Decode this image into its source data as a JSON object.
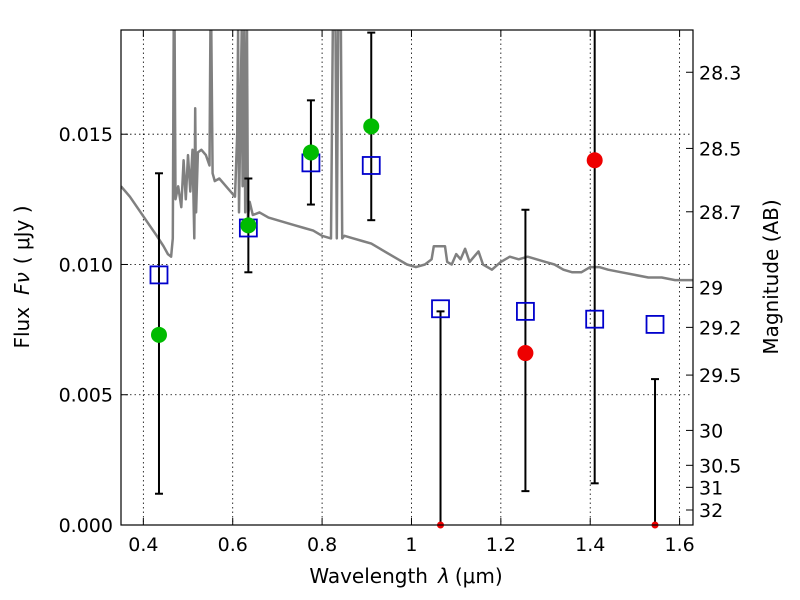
{
  "chart_data": {
    "type": "scatter",
    "xlabel_text": "Wavelength",
    "xlabel_var": "λ",
    "xlabel_unit": "(μm)",
    "ylabel_text": "Flux",
    "ylabel_var": "Fν",
    "ylabel_unit": "( μJy )",
    "y2label": "Magnitude (AB)",
    "xlim": [
      0.35,
      1.63
    ],
    "ylim": [
      0.0,
      0.019
    ],
    "grid": true,
    "x_ticks": [
      {
        "value": 0.4,
        "label": "0.4"
      },
      {
        "value": 0.6,
        "label": "0.6"
      },
      {
        "value": 0.8,
        "label": "0.8"
      },
      {
        "value": 1.0,
        "label": "1"
      },
      {
        "value": 1.2,
        "label": "1.2"
      },
      {
        "value": 1.4,
        "label": "1.4"
      },
      {
        "value": 1.6,
        "label": "1.6"
      }
    ],
    "y_ticks": [
      {
        "value": 0.0,
        "label": "0.000"
      },
      {
        "value": 0.005,
        "label": "0.005"
      },
      {
        "value": 0.01,
        "label": "0.010"
      },
      {
        "value": 0.015,
        "label": "0.015"
      }
    ],
    "y2_ticks": [
      {
        "mag": 28.3,
        "label": "28.3"
      },
      {
        "mag": 28.5,
        "label": "28.5"
      },
      {
        "mag": 28.7,
        "label": "28.7"
      },
      {
        "mag": 29.0,
        "label": "29"
      },
      {
        "mag": 29.2,
        "label": "29.2"
      },
      {
        "mag": 29.5,
        "label": "29.5"
      },
      {
        "mag": 30.0,
        "label": "30"
      },
      {
        "mag": 30.5,
        "label": "30.5"
      },
      {
        "mag": 31.0,
        "label": "31"
      },
      {
        "mag": 32.0,
        "label": "32"
      }
    ],
    "colors": {
      "sed": "#808080",
      "model": "#0000cc",
      "detection": "#00bb00",
      "upper_limit": "#ee0000",
      "errorbar": "#000000"
    },
    "sed_curve": [
      [
        0.35,
        0.013
      ],
      [
        0.37,
        0.0126
      ],
      [
        0.39,
        0.0121
      ],
      [
        0.41,
        0.0116
      ],
      [
        0.43,
        0.0111
      ],
      [
        0.445,
        0.0107
      ],
      [
        0.455,
        0.0104
      ],
      [
        0.462,
        0.0103
      ],
      [
        0.466,
        0.011
      ],
      [
        0.468,
        0.019
      ],
      [
        0.47,
        0.019
      ],
      [
        0.472,
        0.0125
      ],
      [
        0.478,
        0.013
      ],
      [
        0.485,
        0.0122
      ],
      [
        0.49,
        0.014
      ],
      [
        0.495,
        0.0125
      ],
      [
        0.5,
        0.0142
      ],
      [
        0.505,
        0.0128
      ],
      [
        0.51,
        0.0144
      ],
      [
        0.514,
        0.011
      ],
      [
        0.516,
        0.016
      ],
      [
        0.518,
        0.012
      ],
      [
        0.522,
        0.0143
      ],
      [
        0.53,
        0.0144
      ],
      [
        0.54,
        0.0142
      ],
      [
        0.548,
        0.0138
      ],
      [
        0.55,
        0.019
      ],
      [
        0.552,
        0.019
      ],
      [
        0.555,
        0.0135
      ],
      [
        0.56,
        0.0132
      ],
      [
        0.57,
        0.0133
      ],
      [
        0.58,
        0.0131
      ],
      [
        0.59,
        0.0129
      ],
      [
        0.605,
        0.0126
      ],
      [
        0.61,
        0.015
      ],
      [
        0.612,
        0.019
      ],
      [
        0.614,
        0.012
      ],
      [
        0.62,
        0.019
      ],
      [
        0.622,
        0.013
      ],
      [
        0.626,
        0.019
      ],
      [
        0.628,
        0.012
      ],
      [
        0.632,
        0.019
      ],
      [
        0.634,
        0.0118
      ],
      [
        0.638,
        0.0124
      ],
      [
        0.645,
        0.0119
      ],
      [
        0.66,
        0.012
      ],
      [
        0.68,
        0.0118
      ],
      [
        0.7,
        0.0117
      ],
      [
        0.72,
        0.0116
      ],
      [
        0.74,
        0.0115
      ],
      [
        0.76,
        0.0114
      ],
      [
        0.78,
        0.0113
      ],
      [
        0.8,
        0.0111
      ],
      [
        0.82,
        0.011
      ],
      [
        0.824,
        0.019
      ],
      [
        0.83,
        0.019
      ],
      [
        0.833,
        0.011
      ],
      [
        0.836,
        0.019
      ],
      [
        0.842,
        0.019
      ],
      [
        0.845,
        0.011
      ],
      [
        0.85,
        0.0111
      ],
      [
        0.87,
        0.011
      ],
      [
        0.89,
        0.0109
      ],
      [
        0.91,
        0.0108
      ],
      [
        0.93,
        0.0106
      ],
      [
        0.95,
        0.0104
      ],
      [
        0.97,
        0.0102
      ],
      [
        0.99,
        0.01
      ],
      [
        1.01,
        0.0099
      ],
      [
        1.03,
        0.01
      ],
      [
        1.045,
        0.0102
      ],
      [
        1.05,
        0.0107
      ],
      [
        1.075,
        0.0107
      ],
      [
        1.08,
        0.0101
      ],
      [
        1.09,
        0.01
      ],
      [
        1.1,
        0.0104
      ],
      [
        1.11,
        0.0102
      ],
      [
        1.12,
        0.0106
      ],
      [
        1.13,
        0.0101
      ],
      [
        1.15,
        0.0105
      ],
      [
        1.16,
        0.01
      ],
      [
        1.18,
        0.0098
      ],
      [
        1.2,
        0.0101
      ],
      [
        1.22,
        0.0103
      ],
      [
        1.24,
        0.0102
      ],
      [
        1.26,
        0.0103
      ],
      [
        1.28,
        0.0102
      ],
      [
        1.3,
        0.0101
      ],
      [
        1.32,
        0.01
      ],
      [
        1.34,
        0.0098
      ],
      [
        1.36,
        0.0097
      ],
      [
        1.38,
        0.0097
      ],
      [
        1.4,
        0.0099
      ],
      [
        1.42,
        0.0099
      ],
      [
        1.44,
        0.0098
      ],
      [
        1.47,
        0.0097
      ],
      [
        1.5,
        0.0096
      ],
      [
        1.53,
        0.0095
      ],
      [
        1.56,
        0.0095
      ],
      [
        1.59,
        0.0094
      ],
      [
        1.63,
        0.0094
      ]
    ],
    "model_points": [
      {
        "x": 0.435,
        "y": 0.0096
      },
      {
        "x": 0.635,
        "y": 0.0114
      },
      {
        "x": 0.775,
        "y": 0.0139
      },
      {
        "x": 0.91,
        "y": 0.0138
      },
      {
        "x": 1.065,
        "y": 0.0083
      },
      {
        "x": 1.255,
        "y": 0.0082
      },
      {
        "x": 1.41,
        "y": 0.0079
      },
      {
        "x": 1.545,
        "y": 0.0077
      }
    ],
    "observed_points": [
      {
        "x": 0.435,
        "y": 0.0073,
        "yerr_low": 0.0012,
        "yerr_high": 0.0135,
        "status": "detection"
      },
      {
        "x": 0.635,
        "y": 0.0115,
        "yerr_low": 0.0097,
        "yerr_high": 0.0133,
        "status": "detection"
      },
      {
        "x": 0.775,
        "y": 0.0143,
        "yerr_low": 0.0123,
        "yerr_high": 0.0163,
        "status": "detection"
      },
      {
        "x": 0.91,
        "y": 0.0153,
        "yerr_low": 0.0117,
        "yerr_high": 0.0189,
        "status": "detection"
      },
      {
        "x": 1.065,
        "y": 0.0,
        "yerr_low": 0.0,
        "yerr_high": 0.0082,
        "status": "upper_limit"
      },
      {
        "x": 1.255,
        "y": 0.0066,
        "yerr_low": 0.0013,
        "yerr_high": 0.0121,
        "status": "upper_limit"
      },
      {
        "x": 1.41,
        "y": 0.014,
        "yerr_low": 0.0016,
        "yerr_high": 0.019,
        "status": "upper_limit"
      },
      {
        "x": 1.545,
        "y": 0.0,
        "yerr_low": 0.0,
        "yerr_high": 0.0056,
        "status": "upper_limit"
      }
    ]
  }
}
